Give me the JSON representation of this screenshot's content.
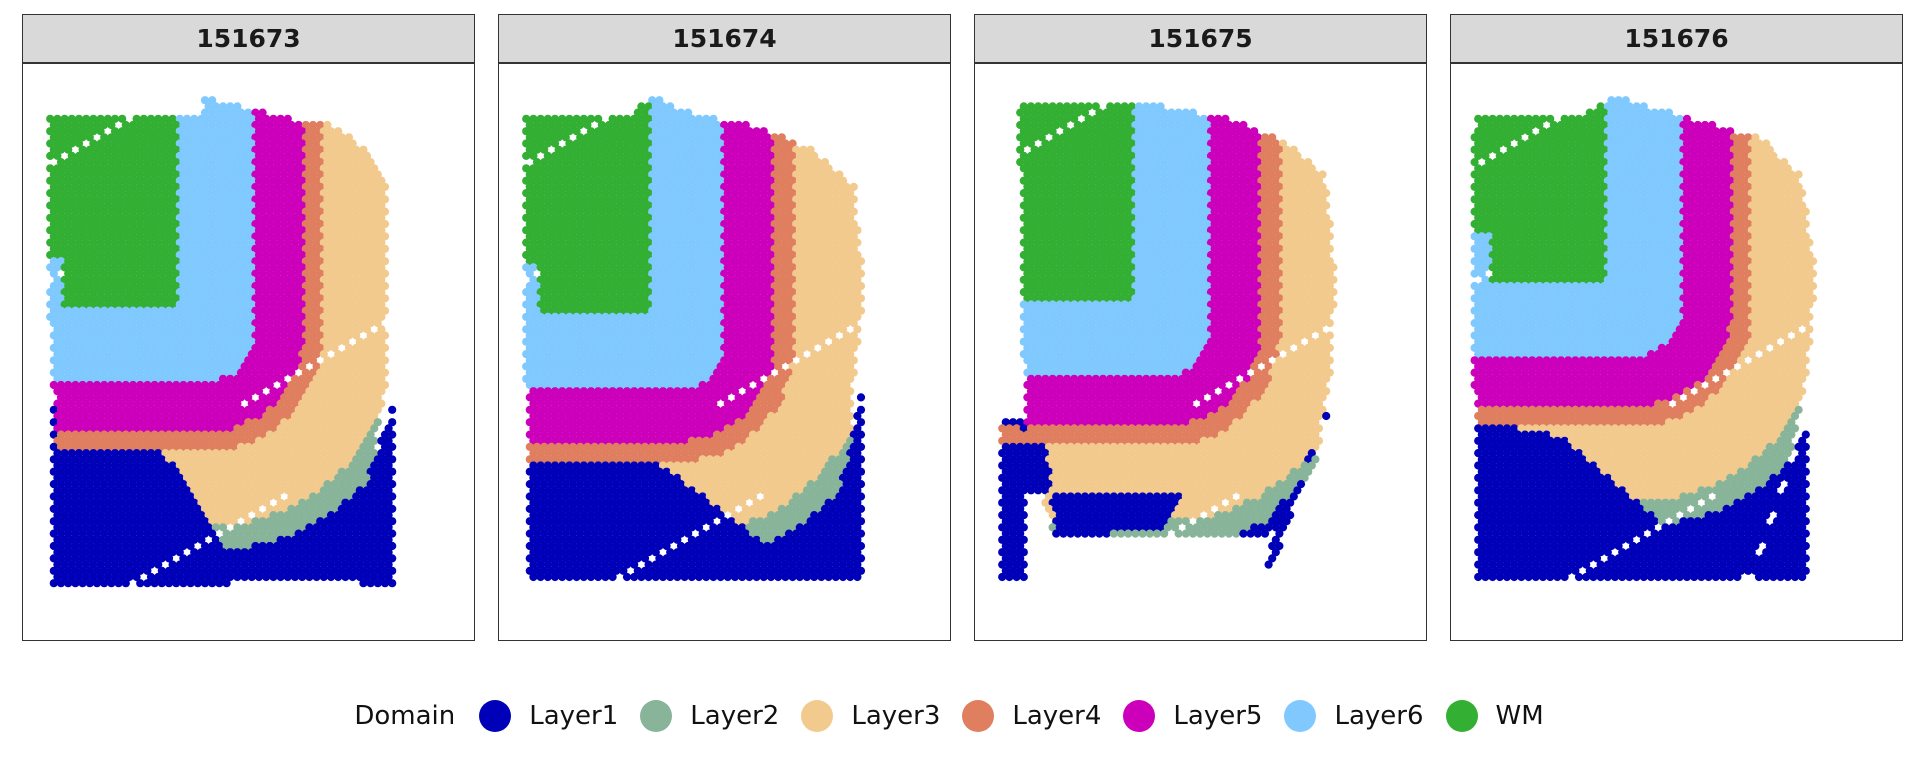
{
  "chart_data": {
    "type": "scatter",
    "description_free": true,
    "facets": [
      "151673",
      "151674",
      "151675",
      "151676"
    ],
    "legend": {
      "title": "Domain",
      "placement": "bottom",
      "categories": [
        "Layer1",
        "Layer2",
        "Layer3",
        "Layer4",
        "Layer5",
        "Layer6",
        "WM"
      ]
    },
    "colors": {
      "Layer1": "#0000B8",
      "Layer2": "#88B49A",
      "Layer3": "#F2CA8E",
      "Layer4": "#E07E60",
      "Layer5": "#CC00BB",
      "Layer6": "#80C9FF",
      "WM": "#33AF33"
    },
    "axes": {
      "x_visible": false,
      "y_visible": false,
      "grid": false
    }
  }
}
